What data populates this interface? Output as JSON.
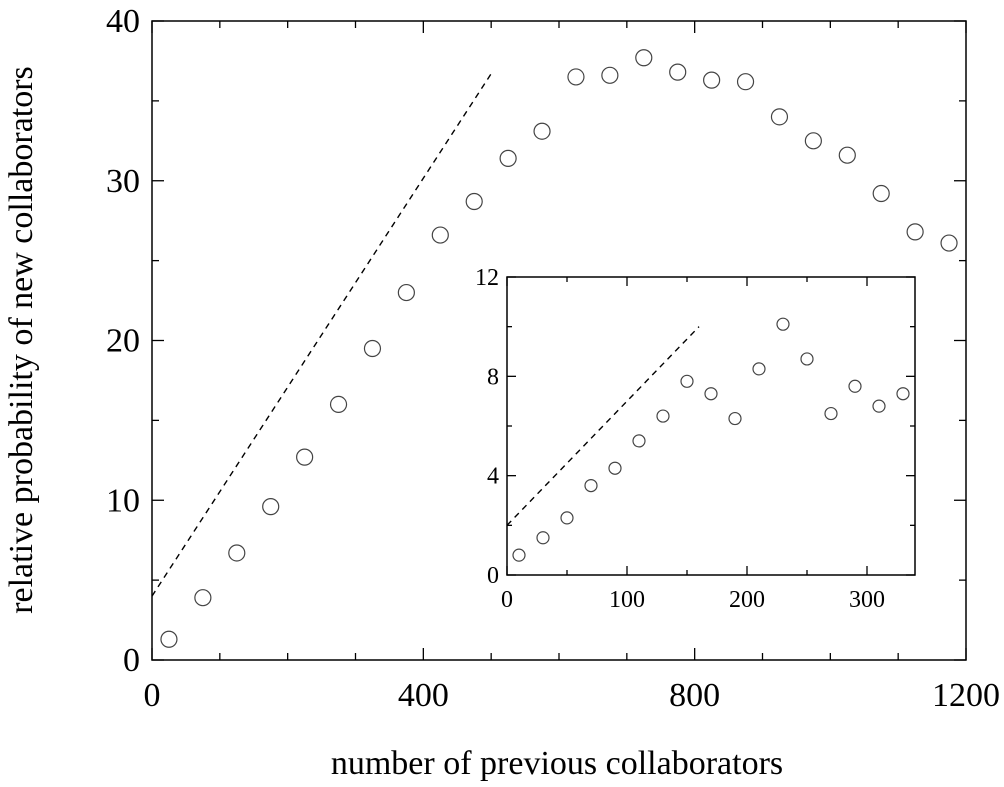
{
  "chart_data": [
    {
      "id": "main",
      "type": "scatter",
      "xlabel": "number of previous collaborators",
      "ylabel": "relative probability of new collaborators",
      "xlim": [
        0,
        1200
      ],
      "ylim": [
        0,
        40
      ],
      "x_ticks": [
        0,
        400,
        800,
        1200
      ],
      "y_ticks": [
        0,
        10,
        20,
        30,
        40
      ],
      "x_ticks_labels": [
        "0",
        "400",
        "800",
        "1200"
      ],
      "y_ticks_labels": [
        "0",
        "10",
        "20",
        "30",
        "40"
      ],
      "x_minor_step": 100,
      "y_minor_step": 5,
      "grid": false,
      "series": [
        {
          "marker": "open-circle",
          "points": [
            [
              25,
              1.3
            ],
            [
              75,
              3.9
            ],
            [
              125,
              6.7
            ],
            [
              175,
              9.6
            ],
            [
              225,
              12.7
            ],
            [
              275,
              16.0
            ],
            [
              325,
              19.5
            ],
            [
              375,
              23.0
            ],
            [
              425,
              26.6
            ],
            [
              475,
              28.7
            ],
            [
              525,
              31.4
            ],
            [
              575,
              33.1
            ],
            [
              625,
              36.5
            ],
            [
              675,
              36.6
            ],
            [
              725,
              37.7
            ],
            [
              775,
              36.8
            ],
            [
              825,
              36.3
            ],
            [
              875,
              36.2
            ],
            [
              925,
              34.0
            ],
            [
              975,
              32.5
            ],
            [
              1025,
              31.6
            ],
            [
              1075,
              29.2
            ],
            [
              1125,
              26.8
            ],
            [
              1175,
              26.1
            ]
          ]
        }
      ],
      "reference_line": {
        "style": "dashed",
        "from": [
          0,
          4.0
        ],
        "to": [
          500,
          36.7
        ]
      }
    },
    {
      "id": "inset",
      "type": "scatter",
      "xlabel": "",
      "ylabel": "",
      "xlim": [
        0,
        340
      ],
      "ylim": [
        0,
        12
      ],
      "x_ticks": [
        0,
        100,
        200,
        300
      ],
      "y_ticks": [
        0,
        4,
        8,
        12
      ],
      "x_ticks_labels": [
        "0",
        "100",
        "200",
        "300"
      ],
      "y_ticks_labels": [
        "0",
        "4",
        "8",
        "12"
      ],
      "x_minor_step": 50,
      "y_minor_step": 2,
      "grid": false,
      "series": [
        {
          "marker": "open-circle",
          "points": [
            [
              10,
              0.8
            ],
            [
              30,
              1.5
            ],
            [
              50,
              2.3
            ],
            [
              70,
              3.6
            ],
            [
              90,
              4.3
            ],
            [
              110,
              5.4
            ],
            [
              130,
              6.4
            ],
            [
              150,
              7.8
            ],
            [
              170,
              7.3
            ],
            [
              190,
              6.3
            ],
            [
              210,
              8.3
            ],
            [
              230,
              10.1
            ],
            [
              250,
              8.7
            ],
            [
              270,
              6.5
            ],
            [
              290,
              7.6
            ],
            [
              310,
              6.8
            ],
            [
              330,
              7.3
            ]
          ]
        }
      ],
      "reference_line": {
        "style": "dashed",
        "from": [
          0,
          2.0
        ],
        "to": [
          160,
          10.0
        ]
      }
    }
  ]
}
